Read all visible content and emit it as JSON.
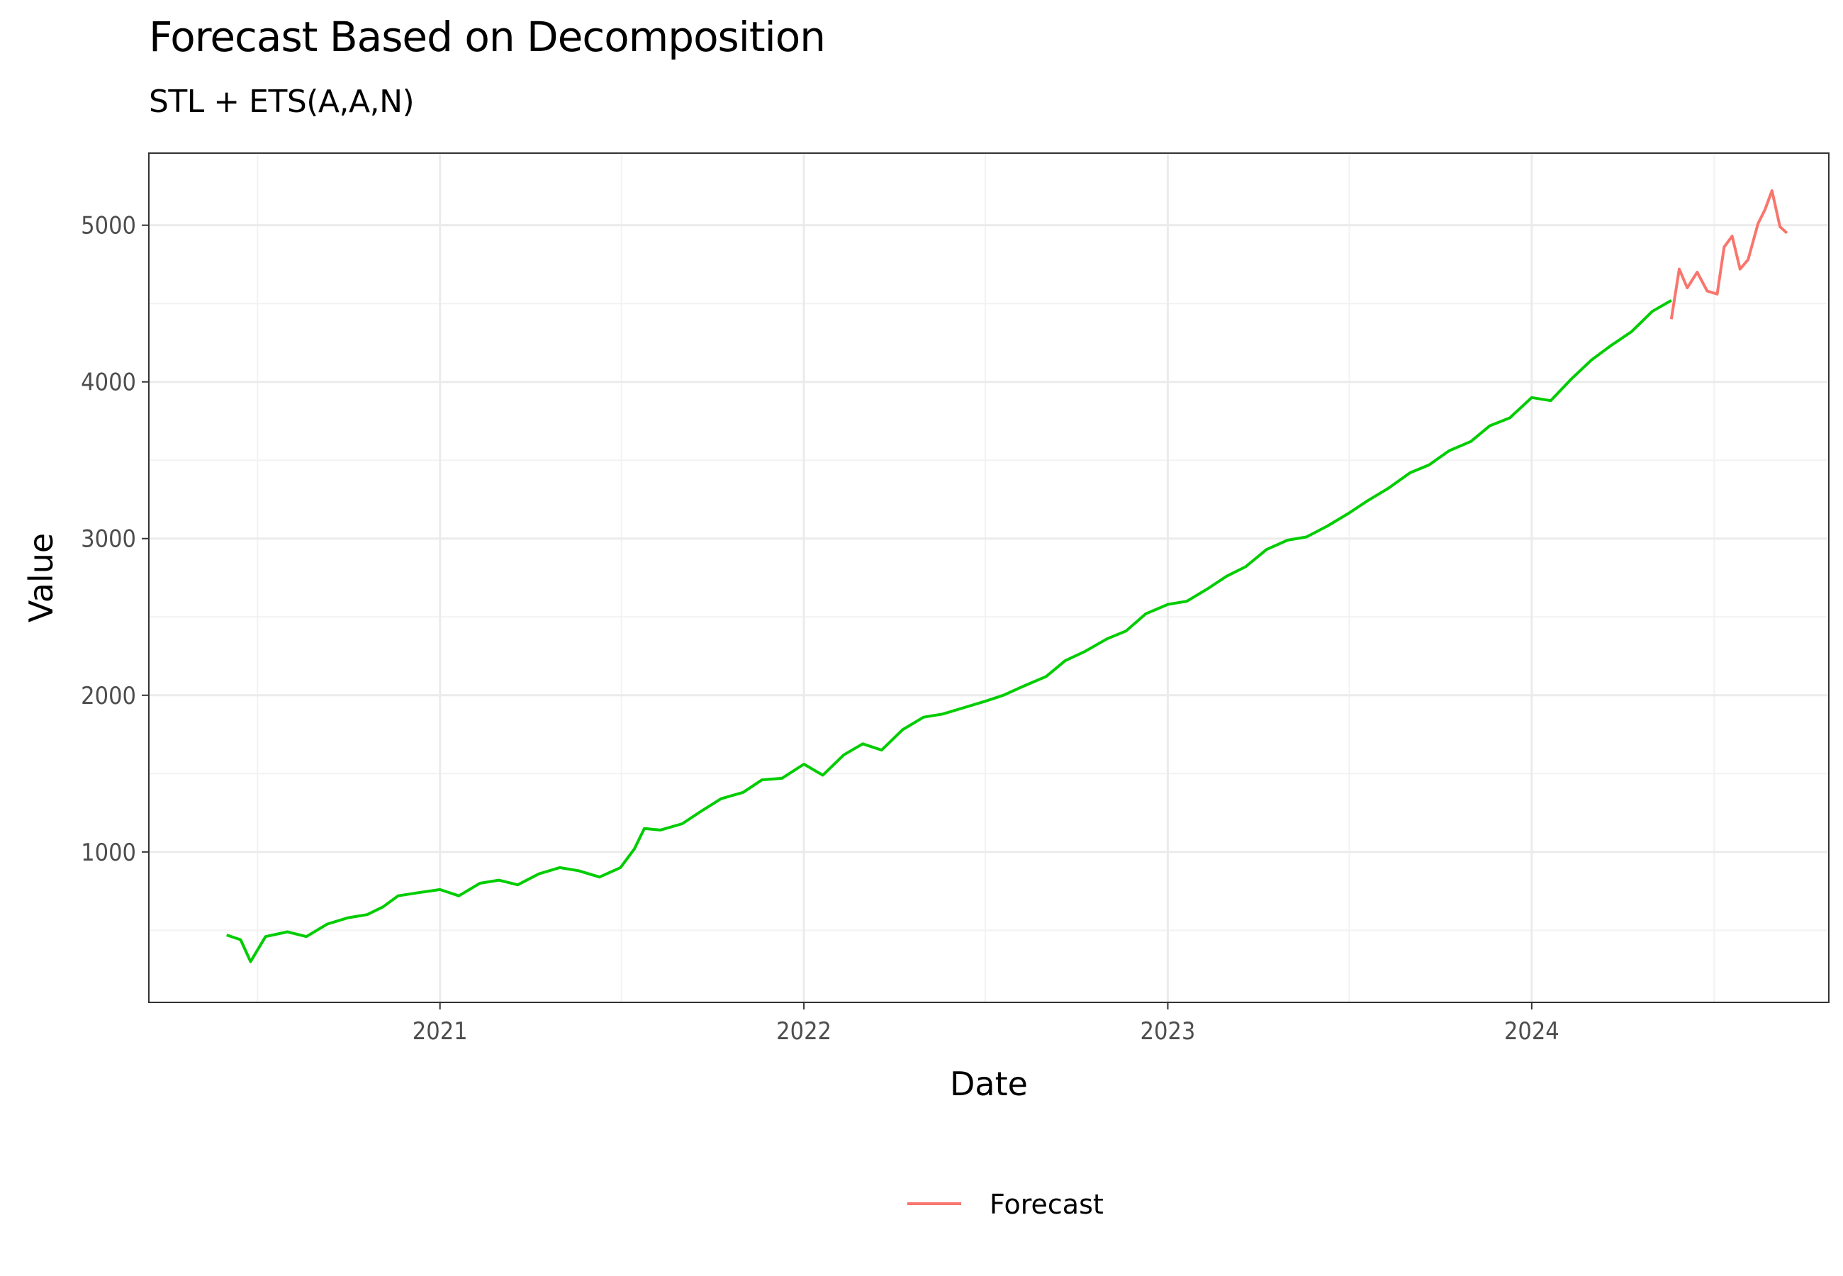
{
  "chart_data": {
    "type": "line",
    "title": "Forecast Based on Decomposition",
    "subtitle": "STL + ETS(A,A,N)",
    "xlabel": "Date",
    "ylabel": "Value",
    "x_range": [
      "2020-03-15",
      "2024-10-25"
    ],
    "ylim": [
      40,
      5460
    ],
    "x_ticks": [
      {
        "value": "2021-01-01",
        "label": "2021"
      },
      {
        "value": "2022-01-01",
        "label": "2022"
      },
      {
        "value": "2023-01-01",
        "label": "2023"
      },
      {
        "value": "2024-01-01",
        "label": "2024"
      }
    ],
    "y_ticks": [
      1000,
      2000,
      3000,
      4000,
      5000
    ],
    "grid": true,
    "legend_position": "bottom",
    "series": [
      {
        "color": "#00cd00",
        "legend": false,
        "points": [
          [
            "2020-06-01",
            470
          ],
          [
            "2020-06-15",
            440
          ],
          [
            "2020-06-25",
            300
          ],
          [
            "2020-07-10",
            460
          ],
          [
            "2020-08-01",
            490
          ],
          [
            "2020-08-20",
            460
          ],
          [
            "2020-09-10",
            540
          ],
          [
            "2020-10-01",
            580
          ],
          [
            "2020-10-20",
            600
          ],
          [
            "2020-11-05",
            650
          ],
          [
            "2020-11-20",
            720
          ],
          [
            "2020-12-10",
            740
          ],
          [
            "2021-01-01",
            760
          ],
          [
            "2021-01-20",
            720
          ],
          [
            "2021-02-10",
            800
          ],
          [
            "2021-03-01",
            820
          ],
          [
            "2021-03-20",
            790
          ],
          [
            "2021-04-10",
            860
          ],
          [
            "2021-05-01",
            900
          ],
          [
            "2021-05-20",
            880
          ],
          [
            "2021-06-10",
            840
          ],
          [
            "2021-07-01",
            900
          ],
          [
            "2021-07-15",
            1020
          ],
          [
            "2021-07-25",
            1150
          ],
          [
            "2021-08-10",
            1140
          ],
          [
            "2021-09-01",
            1180
          ],
          [
            "2021-09-20",
            1260
          ],
          [
            "2021-10-10",
            1340
          ],
          [
            "2021-11-01",
            1380
          ],
          [
            "2021-11-20",
            1460
          ],
          [
            "2021-12-10",
            1470
          ],
          [
            "2022-01-01",
            1560
          ],
          [
            "2022-01-20",
            1490
          ],
          [
            "2022-02-10",
            1620
          ],
          [
            "2022-03-01",
            1690
          ],
          [
            "2022-03-20",
            1650
          ],
          [
            "2022-04-10",
            1780
          ],
          [
            "2022-05-01",
            1860
          ],
          [
            "2022-05-20",
            1880
          ],
          [
            "2022-06-10",
            1920
          ],
          [
            "2022-07-01",
            1960
          ],
          [
            "2022-07-20",
            2000
          ],
          [
            "2022-08-10",
            2060
          ],
          [
            "2022-09-01",
            2120
          ],
          [
            "2022-09-20",
            2220
          ],
          [
            "2022-10-10",
            2280
          ],
          [
            "2022-11-01",
            2360
          ],
          [
            "2022-11-20",
            2410
          ],
          [
            "2022-12-10",
            2520
          ],
          [
            "2023-01-01",
            2580
          ],
          [
            "2023-01-20",
            2600
          ],
          [
            "2023-02-10",
            2680
          ],
          [
            "2023-03-01",
            2760
          ],
          [
            "2023-03-20",
            2820
          ],
          [
            "2023-04-10",
            2930
          ],
          [
            "2023-05-01",
            2990
          ],
          [
            "2023-05-20",
            3010
          ],
          [
            "2023-06-10",
            3080
          ],
          [
            "2023-07-01",
            3160
          ],
          [
            "2023-07-20",
            3240
          ],
          [
            "2023-08-10",
            3320
          ],
          [
            "2023-09-01",
            3420
          ],
          [
            "2023-09-20",
            3470
          ],
          [
            "2023-10-10",
            3560
          ],
          [
            "2023-11-01",
            3620
          ],
          [
            "2023-11-20",
            3720
          ],
          [
            "2023-12-10",
            3770
          ],
          [
            "2024-01-01",
            3900
          ],
          [
            "2024-01-20",
            3880
          ],
          [
            "2024-02-10",
            4020
          ],
          [
            "2024-03-01",
            4140
          ],
          [
            "2024-03-20",
            4230
          ],
          [
            "2024-04-10",
            4320
          ],
          [
            "2024-05-01",
            4450
          ],
          [
            "2024-05-20",
            4520
          ]
        ]
      },
      {
        "name": "Forecast",
        "color": "#f8766d",
        "legend": true,
        "points": [
          [
            "2024-05-20",
            4400
          ],
          [
            "2024-05-28",
            4720
          ],
          [
            "2024-06-05",
            4600
          ],
          [
            "2024-06-15",
            4700
          ],
          [
            "2024-06-25",
            4580
          ],
          [
            "2024-07-05",
            4560
          ],
          [
            "2024-07-12",
            4860
          ],
          [
            "2024-07-20",
            4930
          ],
          [
            "2024-07-28",
            4720
          ],
          [
            "2024-08-05",
            4780
          ],
          [
            "2024-08-15",
            5010
          ],
          [
            "2024-08-22",
            5100
          ],
          [
            "2024-08-29",
            5220
          ],
          [
            "2024-09-06",
            4990
          ],
          [
            "2024-09-13",
            4950
          ]
        ]
      }
    ]
  }
}
